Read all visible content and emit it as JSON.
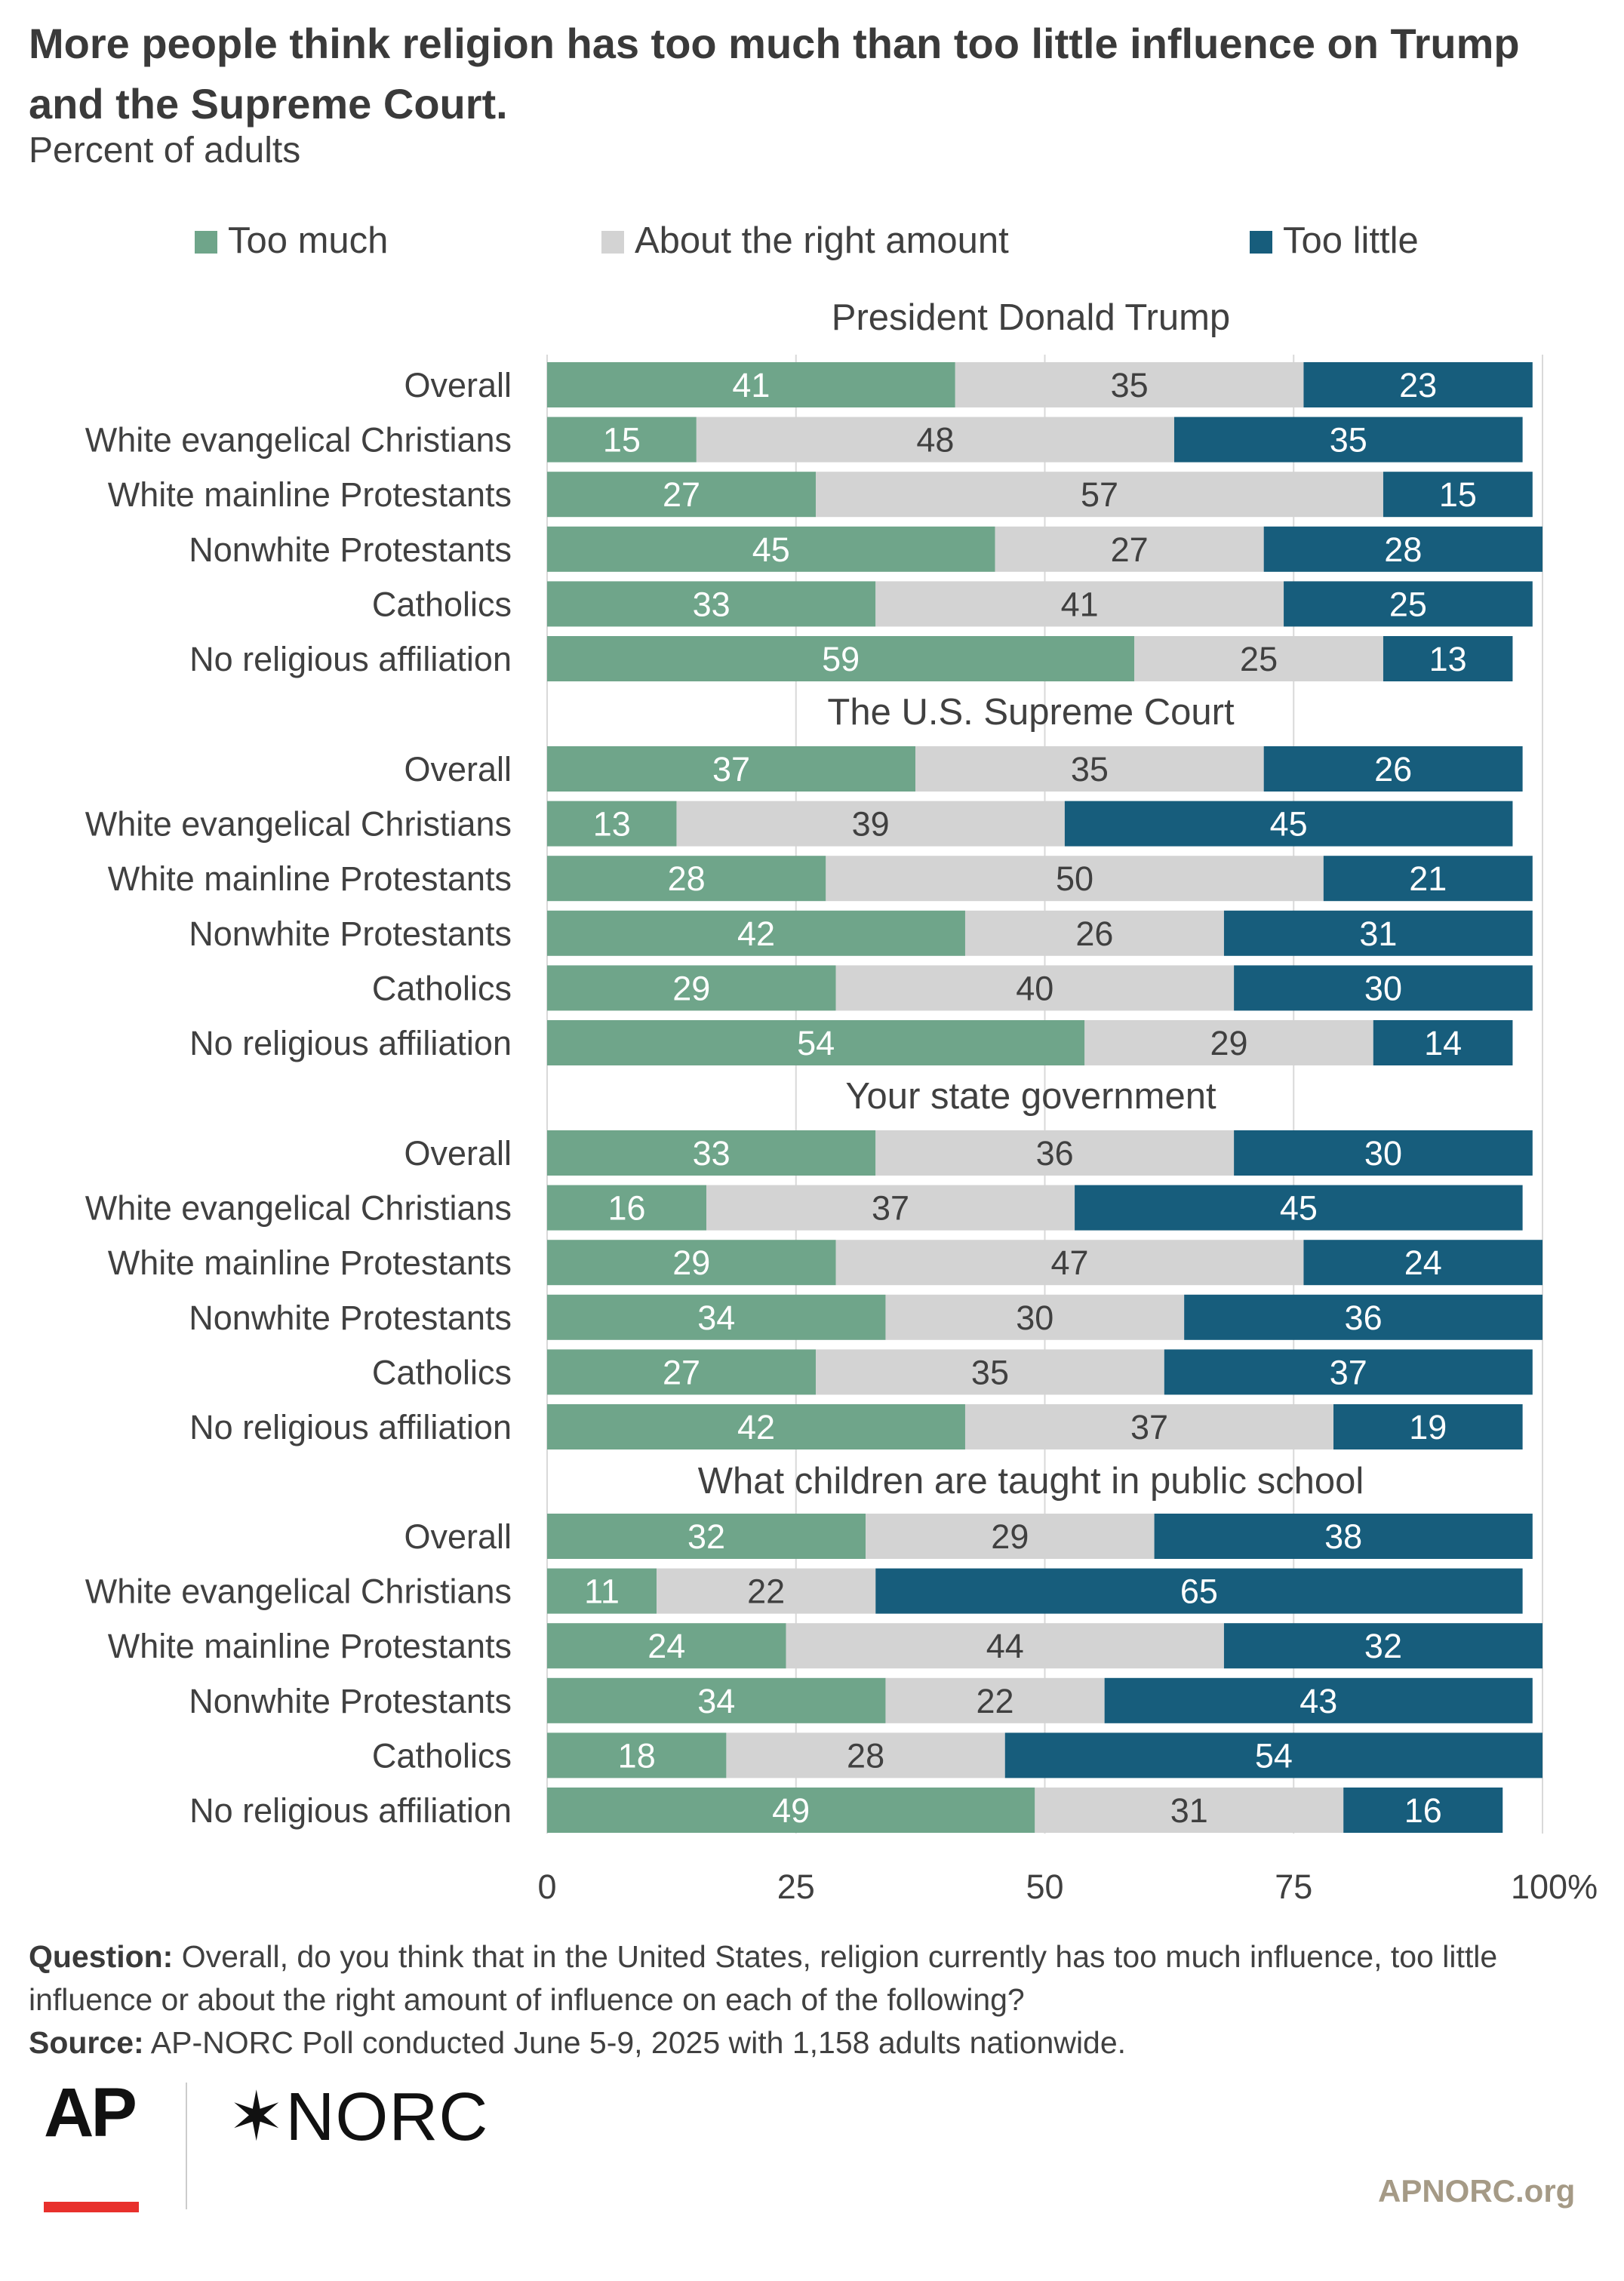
{
  "title": "More people think religion has too much than too little influence on Trump and the Supreme Court.",
  "subtitle": "Percent of adults",
  "colors": {
    "too_much": "#6fa58a",
    "right_amount": "#d3d3d3",
    "too_little": "#175d7c"
  },
  "chart_data": {
    "type": "bar",
    "orientation": "horizontal",
    "stacked": true,
    "xlim": [
      0,
      100
    ],
    "xticks": [
      "0",
      "25",
      "50",
      "75",
      "100%"
    ],
    "legend_position": "top",
    "legend": [
      "Too much",
      "About the right amount",
      "Too little"
    ],
    "panels": [
      {
        "title": "President Donald Trump",
        "categories": [
          "Overall",
          "White evangelical Christians",
          "White mainline Protestants",
          "Nonwhite Protestants",
          "Catholics",
          "No religious affiliation"
        ],
        "series": [
          {
            "name": "Too much",
            "values": [
              41,
              15,
              27,
              45,
              33,
              59
            ]
          },
          {
            "name": "About the right amount",
            "values": [
              35,
              48,
              57,
              27,
              41,
              25
            ]
          },
          {
            "name": "Too little",
            "values": [
              23,
              35,
              15,
              28,
              25,
              13
            ]
          }
        ]
      },
      {
        "title": "The U.S. Supreme Court",
        "categories": [
          "Overall",
          "White evangelical Christians",
          "White mainline Protestants",
          "Nonwhite Protestants",
          "Catholics",
          "No religious affiliation"
        ],
        "series": [
          {
            "name": "Too much",
            "values": [
              37,
              13,
              28,
              42,
              29,
              54
            ]
          },
          {
            "name": "About the right amount",
            "values": [
              35,
              39,
              50,
              26,
              40,
              29
            ]
          },
          {
            "name": "Too little",
            "values": [
              26,
              45,
              21,
              31,
              30,
              14
            ]
          }
        ]
      },
      {
        "title": "Your state government",
        "categories": [
          "Overall",
          "White evangelical Christians",
          "White mainline Protestants",
          "Nonwhite Protestants",
          "Catholics",
          "No religious affiliation"
        ],
        "series": [
          {
            "name": "Too much",
            "values": [
              33,
              16,
              29,
              34,
              27,
              42
            ]
          },
          {
            "name": "About the right amount",
            "values": [
              36,
              37,
              47,
              30,
              35,
              37
            ]
          },
          {
            "name": "Too little",
            "values": [
              30,
              45,
              24,
              36,
              37,
              19
            ]
          }
        ]
      },
      {
        "title": "What children are taught in public school",
        "categories": [
          "Overall",
          "White evangelical Christians",
          "White mainline Protestants",
          "Nonwhite Protestants",
          "Catholics",
          "No religious affiliation"
        ],
        "series": [
          {
            "name": "Too much",
            "values": [
              32,
              11,
              24,
              34,
              18,
              49
            ]
          },
          {
            "name": "About the right amount",
            "values": [
              29,
              22,
              44,
              22,
              28,
              31
            ]
          },
          {
            "name": "Too little",
            "values": [
              38,
              65,
              32,
              43,
              54,
              16
            ]
          }
        ]
      }
    ]
  },
  "footnotes": {
    "question_label": "Question:",
    "question_text": " Overall, do you think that in the United States, religion currently has too much influence, too little influence or about the right amount of influence on each of the following?",
    "source_label": "Source:",
    "source_text": " AP-NORC Poll conducted June 5-9, 2025 with 1,158 adults nationwide."
  },
  "logos": {
    "ap": "AP",
    "norc": "✶NORC"
  },
  "website": "APNORC.org"
}
